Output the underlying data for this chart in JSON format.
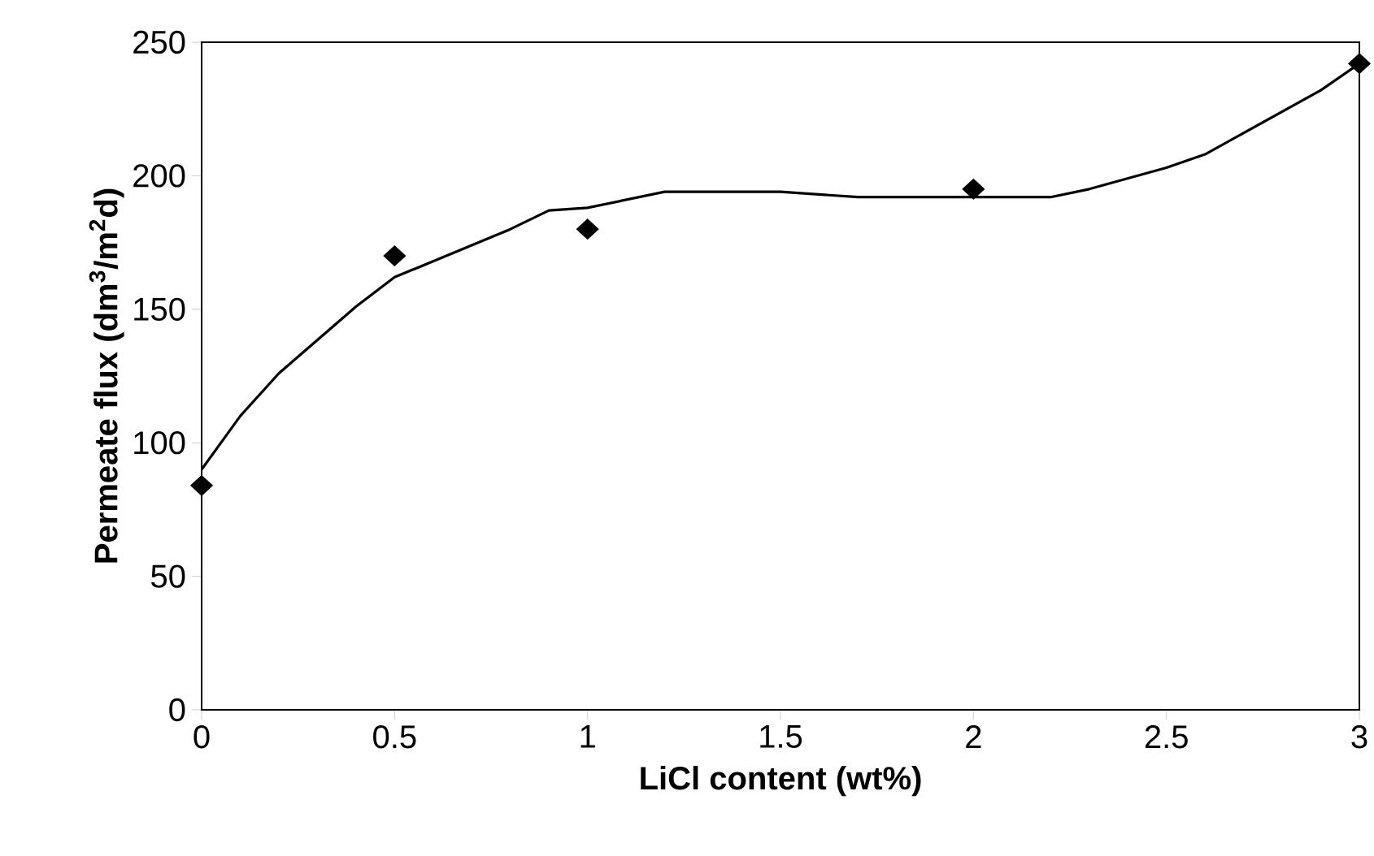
{
  "chart_data": {
    "type": "scatter",
    "xlabel": "LiCl content (wt%)",
    "ylabel": "Permeate flux (dm$^{3}$/m$^{2}$d)",
    "xlim": [
      0,
      3
    ],
    "ylim": [
      0,
      250
    ],
    "xticks": [
      0,
      0.5,
      1,
      1.5,
      2,
      2.5,
      3
    ],
    "yticks": [
      0,
      50,
      100,
      150,
      200,
      250
    ],
    "grid": false,
    "series": [
      {
        "marker": "diamond",
        "color": "#000000",
        "x": [
          0,
          0.5,
          1,
          2,
          3
        ],
        "values": [
          84,
          170,
          180,
          195,
          242
        ]
      },
      {
        "type": "line",
        "marker": "none",
        "line_style": "solid",
        "color": "#000000",
        "x": [
          0,
          0.1,
          0.2,
          0.4,
          0.5,
          0.7,
          0.8,
          0.9,
          1.0,
          1.1,
          1.2,
          1.5,
          1.7,
          2.0,
          2.2,
          2.3,
          2.5,
          2.6,
          2.7,
          2.8,
          2.9,
          3.0
        ],
        "values": [
          90,
          110,
          126,
          151,
          162,
          174,
          180,
          187,
          188,
          191,
          194,
          194,
          192,
          192,
          192,
          195,
          203,
          208,
          216,
          224,
          232,
          242
        ]
      }
    ]
  }
}
